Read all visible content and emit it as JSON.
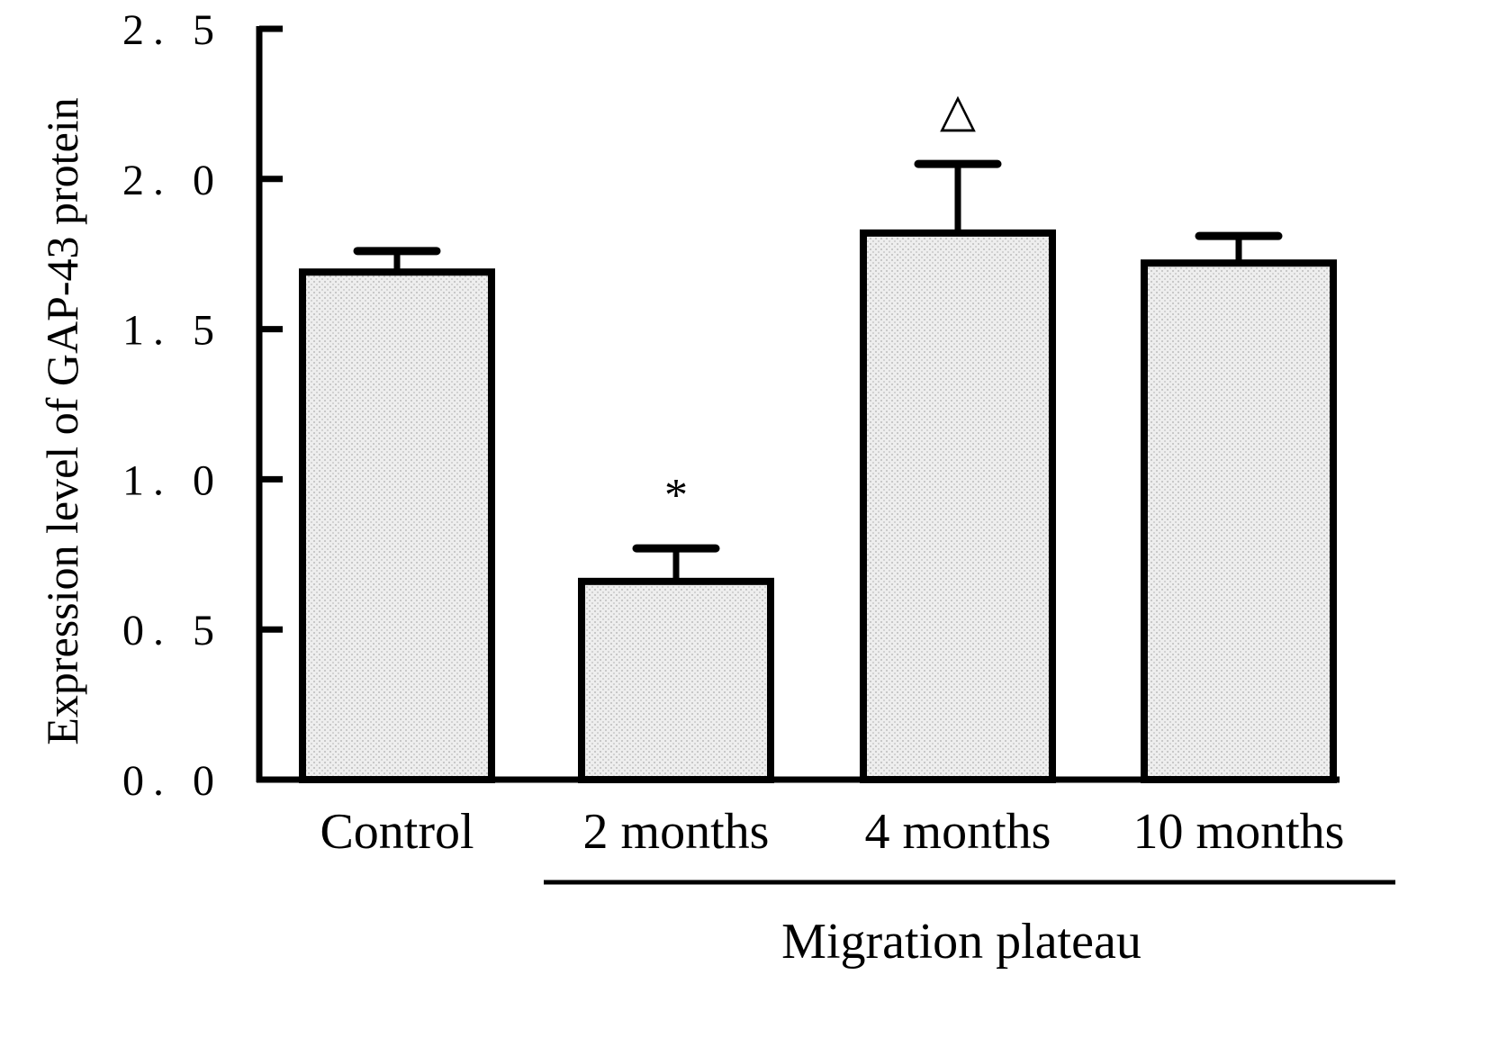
{
  "chart_data": {
    "type": "bar",
    "title": "",
    "ylabel": "Expression level of GAP-43 protein",
    "xlabel": "",
    "categories": [
      "Control",
      "2 months",
      "4 months",
      "10 months"
    ],
    "values": [
      1.69,
      0.66,
      1.82,
      1.72
    ],
    "error_upper": [
      1.76,
      0.77,
      2.05,
      1.81
    ],
    "annotations": [
      "",
      "*",
      "△",
      ""
    ],
    "ylim": [
      0,
      2.5
    ],
    "yticks": [
      "0. 0",
      "0. 5",
      "1. 0",
      "1. 5",
      "2. 0",
      "2. 5"
    ],
    "ytick_values": [
      0,
      0.5,
      1.0,
      1.5,
      2.0,
      2.5
    ],
    "group_label": "Migration plateau",
    "grid": false,
    "legend": "none",
    "bar_fill": "#e6e6e6",
    "bar_stroke": "#000000"
  }
}
